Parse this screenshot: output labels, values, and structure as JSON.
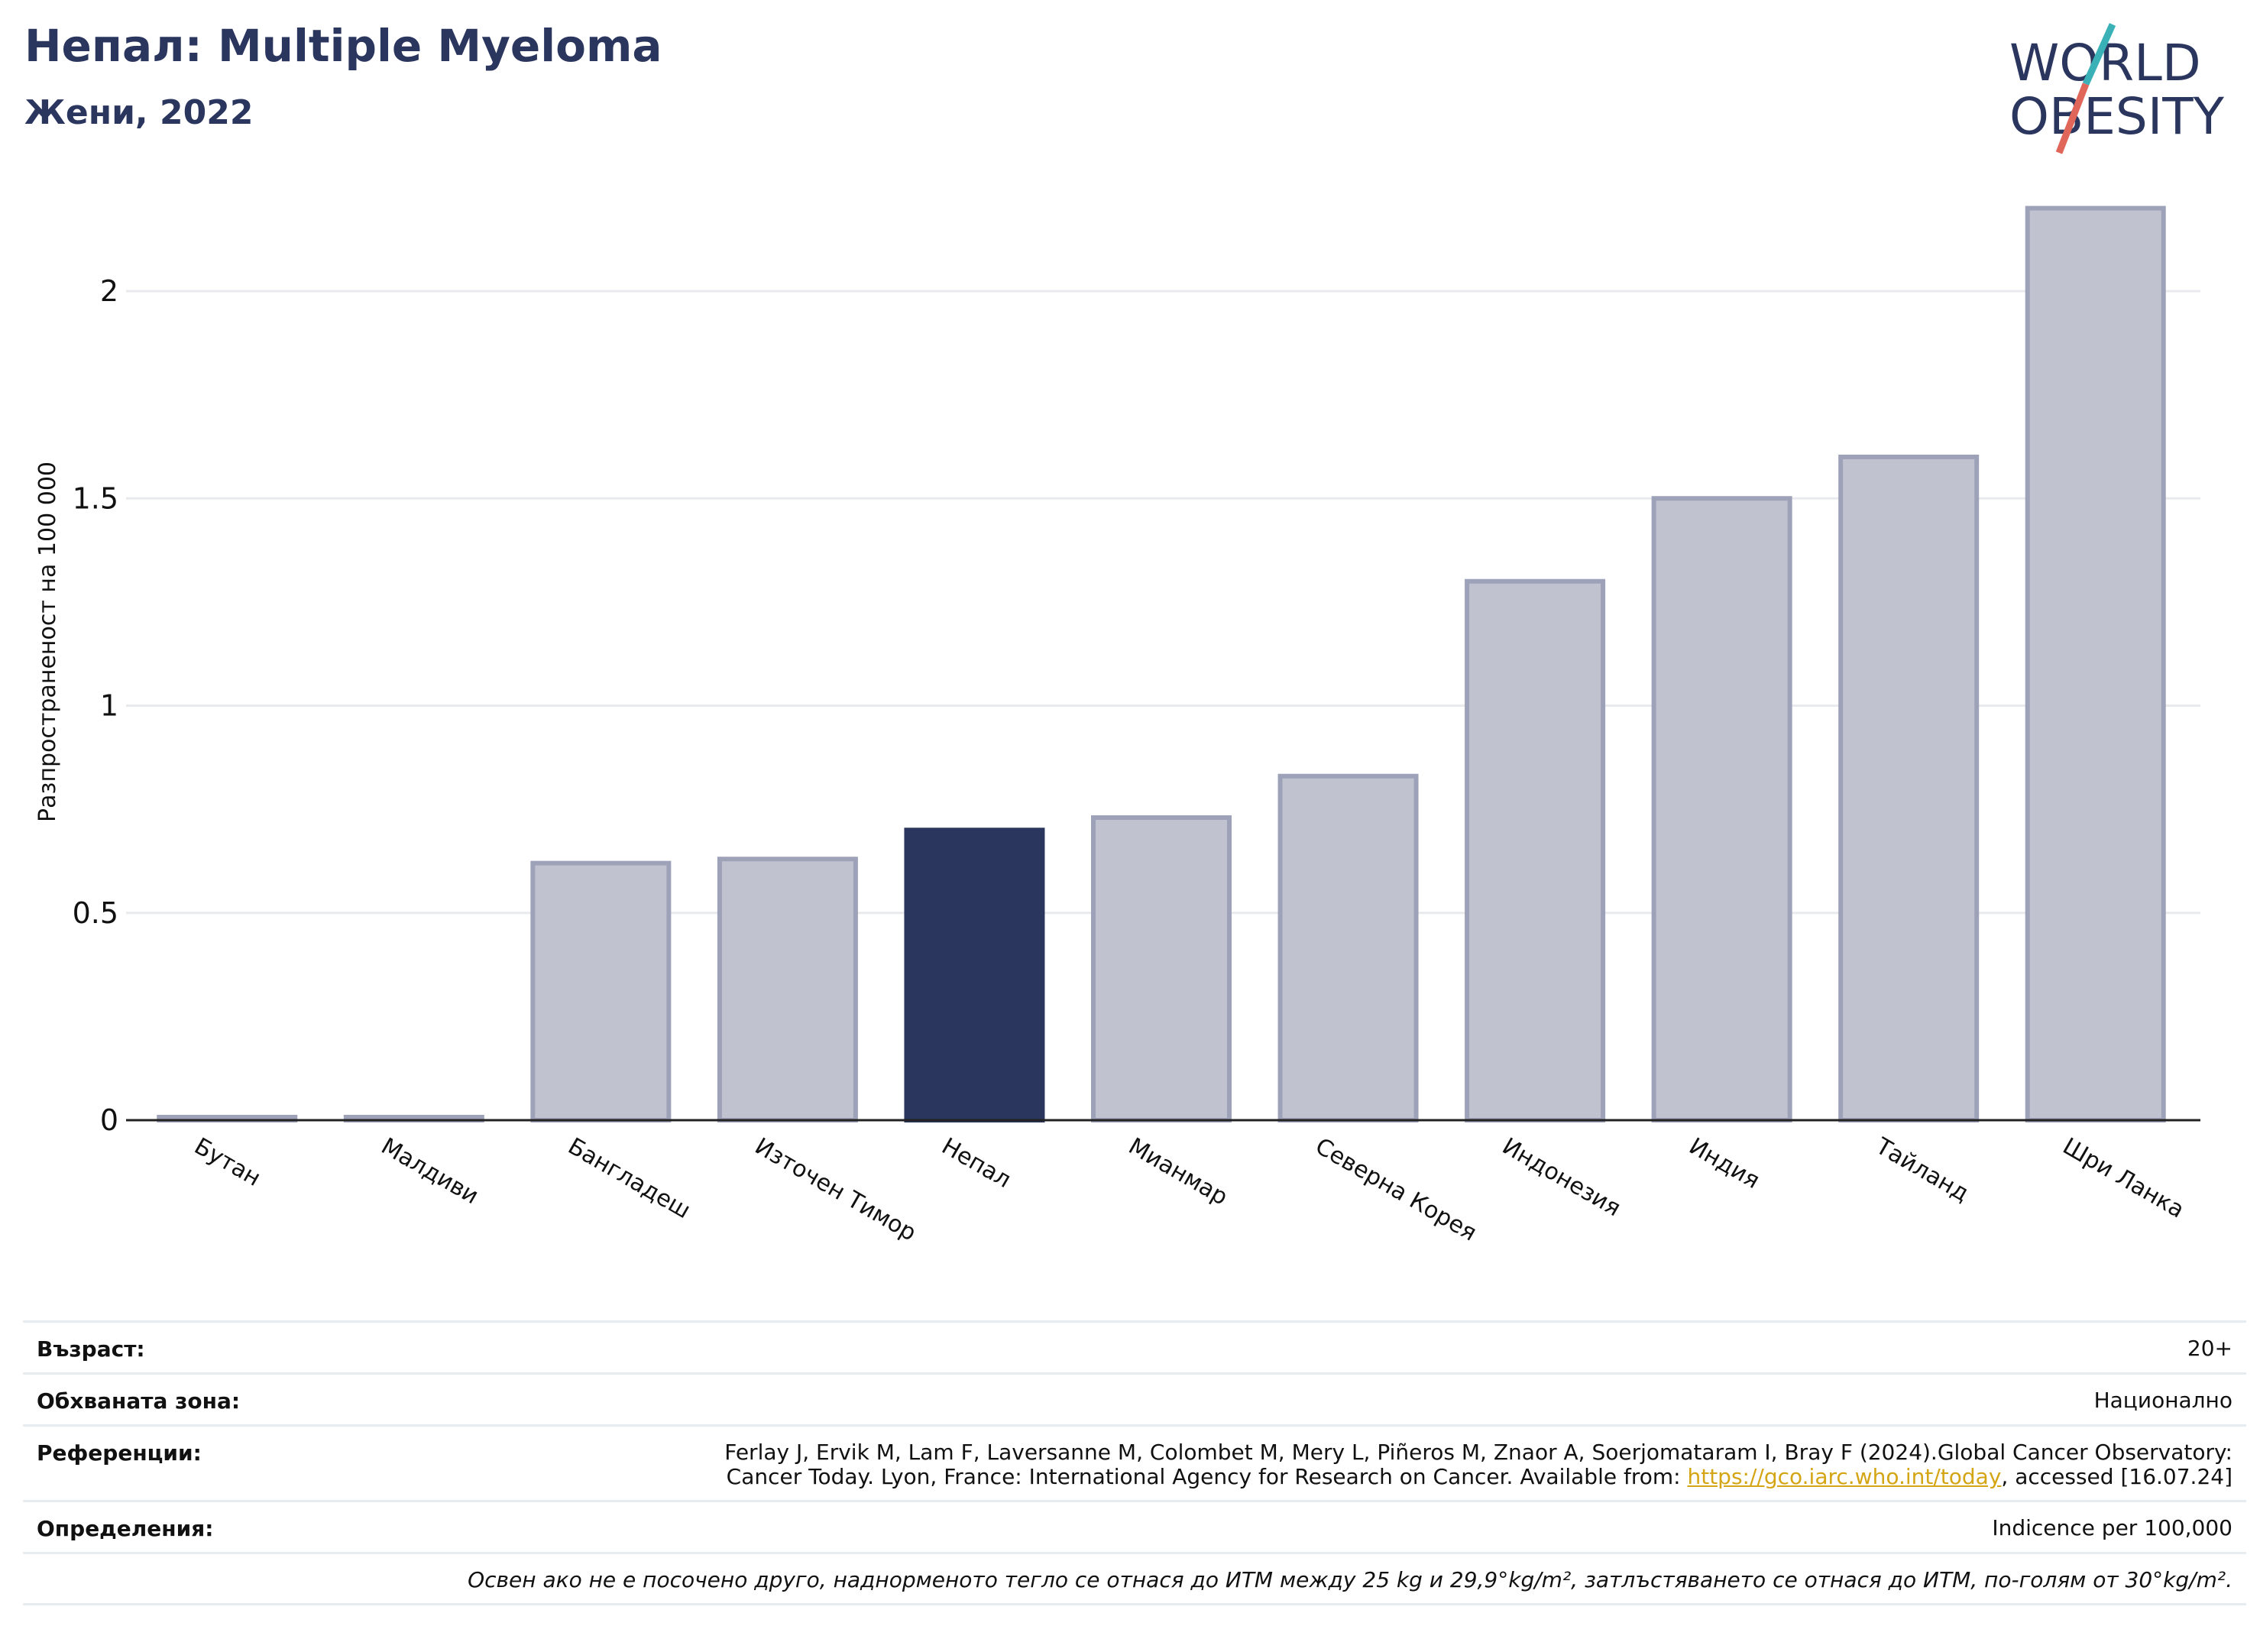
{
  "header": {
    "title": "Непал: Multiple Myeloma",
    "subtitle": "Жени, 2022"
  },
  "logo": {
    "line1": "WORLD",
    "line2": "OBESITY",
    "colors": {
      "text": "#2b365f",
      "slash_top": "#3ab1b6",
      "slash_bottom": "#e0665a"
    }
  },
  "chart_data": {
    "type": "bar",
    "title": "Непал: Multiple Myeloma",
    "subtitle": "Жени, 2022",
    "xlabel": "",
    "ylabel": "Разпространеност  на 100 000",
    "categories": [
      "Бутан",
      "Малдиви",
      "Бангладеш",
      "Източен Тимор",
      "Непал",
      "Мианмар",
      "Северна Корея",
      "Индонезия",
      "Индия",
      "Тайланд",
      "Шри Ланка"
    ],
    "values": [
      0.0,
      0.0,
      0.62,
      0.63,
      0.7,
      0.73,
      0.83,
      1.3,
      1.5,
      1.6,
      2.2
    ],
    "highlight": "Непал",
    "ylim": [
      0,
      2.3
    ],
    "yticks": [
      0,
      0.5,
      1,
      1.5,
      2
    ],
    "ytick_labels": [
      "0",
      "0.5",
      "1",
      "1.5",
      "2"
    ],
    "grid": true,
    "colors": {
      "bar": "#c0c3cf",
      "bar_edge": "#9da2b8",
      "highlight": "#2b365f",
      "grid": "#e8eaee",
      "axis": "#222222"
    }
  },
  "info": {
    "age_key": "Възраст:",
    "age_val": "20+",
    "area_key": "Обхваната зона:",
    "area_val": "Национално",
    "ref_key": "Референции:",
    "ref_line1": "Ferlay J, Ervik M, Lam F, Laversanne M, Colombet M, Mery L, Piñeros M, Znaor A, Soerjomataram I, Bray F (2024).Global Cancer Observatory:",
    "ref_line2_pre": "Cancer Today. Lyon, France: International Agency for Research on Cancer. Available from: ",
    "ref_link": "https://gco.iarc.who.int/today",
    "ref_line2_post": ", accessed [16.07.24]",
    "def_key": "Определения:",
    "def_val": "Indicence per 100,000",
    "note": "Освен ако не е посочено друго, наднорменото тегло се отнася до ИТМ между 25 kg и 29,9°kg/m², затлъстяването се отнася до ИТМ, по-голям от 30°kg/m²."
  }
}
